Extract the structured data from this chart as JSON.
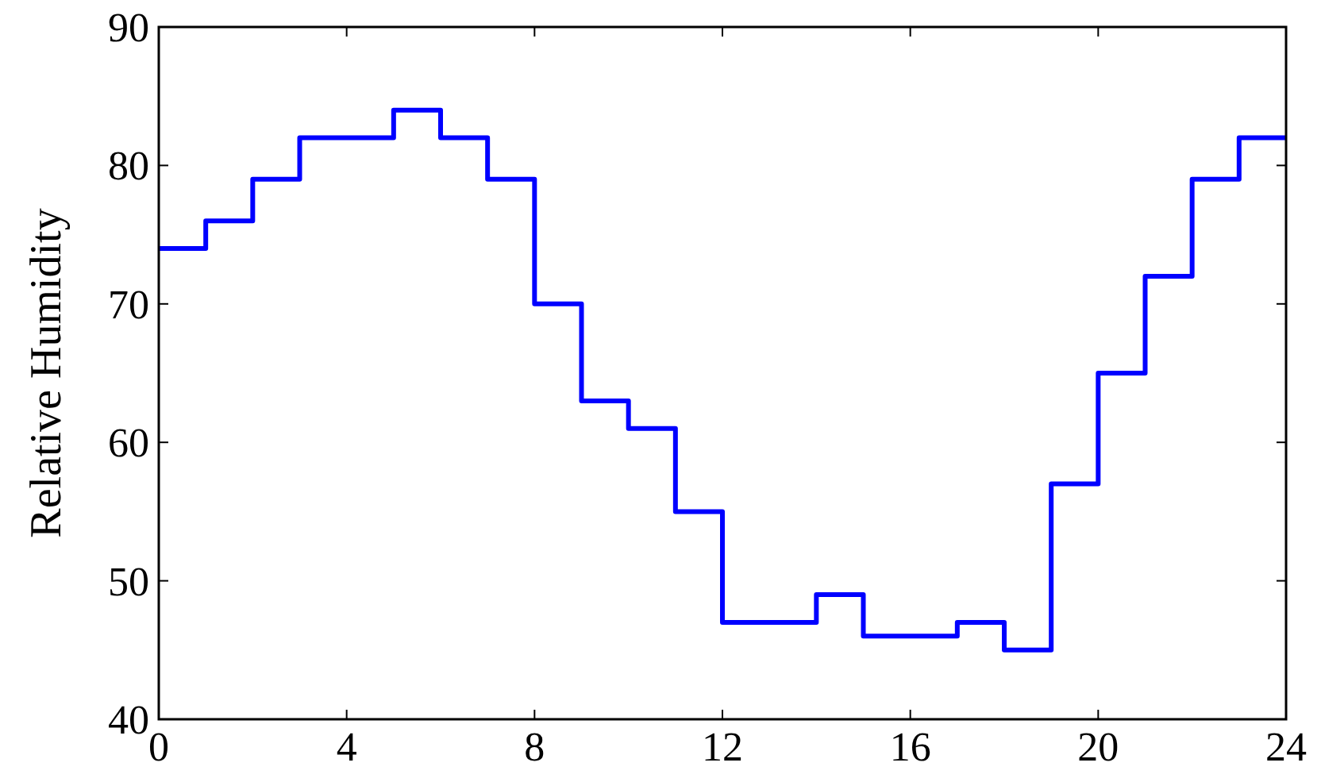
{
  "chart_data": {
    "type": "step",
    "ylabel": "Relative Humidity",
    "x": [
      0,
      1,
      2,
      3,
      4,
      5,
      6,
      7,
      8,
      9,
      10,
      11,
      12,
      13,
      14,
      15,
      16,
      17,
      18,
      19,
      20,
      21,
      22,
      23,
      24
    ],
    "series": [
      {
        "color": "#0000ff",
        "values": [
          74,
          76,
          79,
          82,
          82,
          84,
          82,
          79,
          70,
          63,
          61,
          55,
          47,
          47,
          49,
          46,
          46,
          47,
          45,
          57,
          65,
          72,
          79,
          82,
          82
        ]
      }
    ],
    "xlim": [
      0,
      24
    ],
    "xticks": [
      0,
      4,
      8,
      12,
      16,
      20,
      24
    ],
    "ylim": [
      40,
      90
    ],
    "yticks": [
      40,
      50,
      60,
      70,
      80,
      90
    ],
    "grid": false
  }
}
